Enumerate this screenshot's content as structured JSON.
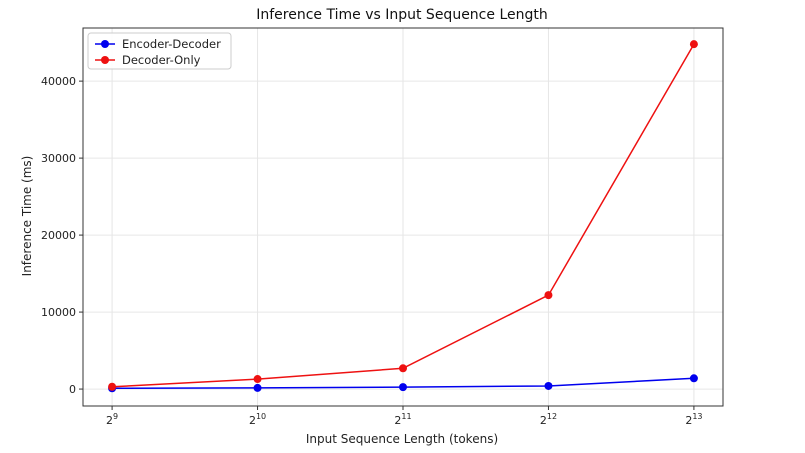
{
  "chart_data": {
    "type": "line",
    "title": "Inference Time vs Input Sequence Length",
    "xlabel": "Input Sequence Length (tokens)",
    "ylabel": "Inference Time (ms)",
    "x_scale": "log2",
    "x": [
      512,
      1024,
      2048,
      4096,
      8192
    ],
    "x_tick_labels": [
      {
        "base": "2",
        "exp": "9"
      },
      {
        "base": "2",
        "exp": "10"
      },
      {
        "base": "2",
        "exp": "11"
      },
      {
        "base": "2",
        "exp": "12"
      },
      {
        "base": "2",
        "exp": "13"
      }
    ],
    "y_ticks": [
      0,
      10000,
      20000,
      30000,
      40000
    ],
    "ylim": [
      -2200,
      46900
    ],
    "grid": true,
    "legend_position": "top-left",
    "series": [
      {
        "name": "Encoder-Decoder",
        "color": "#0000ee",
        "values": [
          100,
          150,
          250,
          400,
          1400
        ]
      },
      {
        "name": "Decoder-Only",
        "color": "#ee1111",
        "values": [
          300,
          1300,
          2700,
          12200,
          44800
        ]
      }
    ]
  }
}
